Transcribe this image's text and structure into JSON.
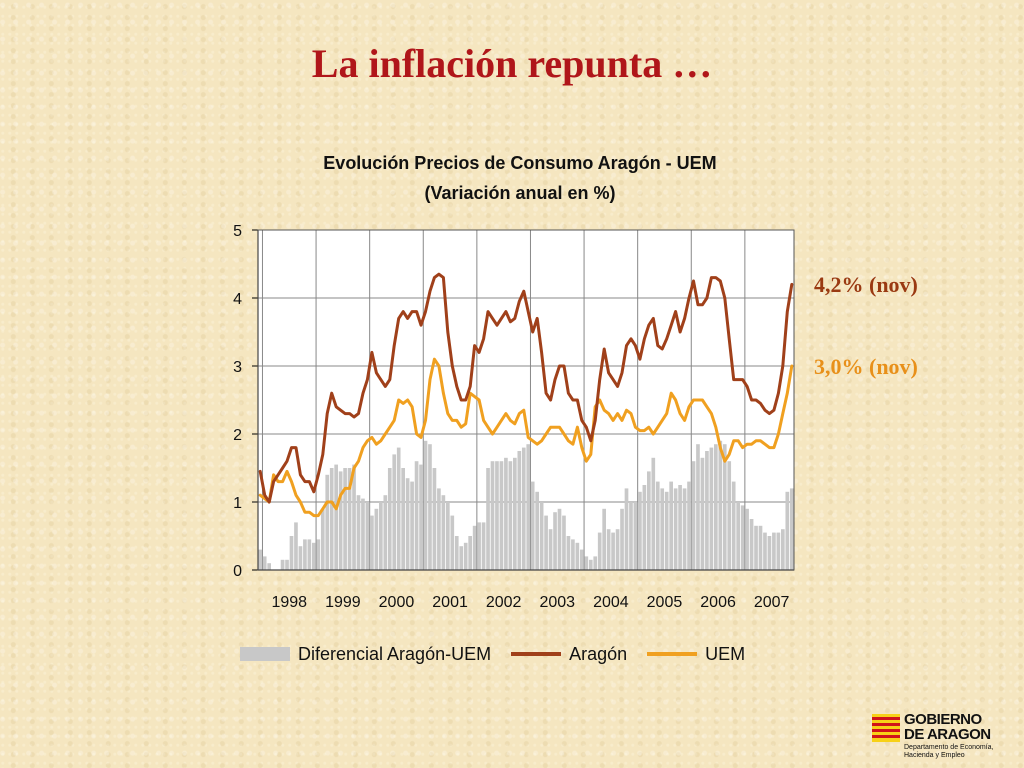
{
  "slide": {
    "title": "La inflación repunta …"
  },
  "annotations": {
    "aragon": "4,2% (nov)",
    "uem": "3,0% (nov)"
  },
  "logo": {
    "line1": "GOBIERNO",
    "line2": "DE ARAGON",
    "dept1": "Departamento de Economía,",
    "dept2": "Hacienda y Empleo"
  },
  "colors": {
    "aragon": "#a0401a",
    "uem": "#f0a020",
    "diferencial": "#c8c8c8",
    "title": "#b0161a"
  },
  "chart_data": {
    "type": "line",
    "title": "Evolución Precios de Consumo Aragón - UEM",
    "subtitle": "(Variación anual en %)",
    "xlabel": "",
    "ylabel": "",
    "ylim": [
      0,
      5
    ],
    "yticks": [
      0,
      1,
      2,
      3,
      4,
      5
    ],
    "xticks": [
      "1998",
      "1999",
      "2000",
      "2001",
      "2002",
      "2003",
      "2004",
      "2005",
      "2006",
      "2007"
    ],
    "grid": true,
    "legend_position": "bottom",
    "x_start": "1997-12",
    "x_end": "2007-11",
    "frequency": "monthly",
    "series": [
      {
        "name": "Diferencial Aragón-UEM",
        "kind": "bar",
        "values": [
          0.3,
          0.2,
          0.1,
          0.0,
          0.0,
          0.15,
          0.15,
          0.5,
          0.7,
          0.35,
          0.45,
          0.45,
          0.4,
          0.45,
          0.9,
          1.4,
          1.5,
          1.55,
          1.45,
          1.5,
          1.5,
          1.55,
          1.1,
          1.05,
          1.0,
          0.8,
          0.9,
          1.0,
          1.1,
          1.5,
          1.7,
          1.8,
          1.5,
          1.35,
          1.3,
          1.6,
          1.55,
          1.9,
          1.85,
          1.5,
          1.2,
          1.1,
          1.0,
          0.8,
          0.5,
          0.35,
          0.4,
          0.5,
          0.65,
          0.7,
          0.7,
          1.5,
          1.6,
          1.6,
          1.6,
          1.65,
          1.6,
          1.65,
          1.75,
          1.8,
          1.85,
          1.3,
          1.15,
          1.0,
          0.8,
          0.6,
          0.85,
          0.9,
          0.8,
          0.5,
          0.45,
          0.4,
          0.3,
          0.2,
          0.15,
          0.2,
          0.55,
          0.9,
          0.6,
          0.55,
          0.6,
          0.9,
          1.2,
          1.0,
          1.0,
          1.15,
          1.25,
          1.45,
          1.65,
          1.3,
          1.2,
          1.15,
          1.3,
          1.2,
          1.25,
          1.2,
          1.3,
          1.6,
          1.85,
          1.65,
          1.75,
          1.8,
          1.85,
          1.9,
          1.85,
          1.6,
          1.3,
          1.0,
          0.95,
          0.9,
          0.75,
          0.65,
          0.65,
          0.55,
          0.5,
          0.55,
          0.55,
          0.6,
          1.15,
          1.2
        ]
      },
      {
        "name": "Aragón",
        "kind": "line",
        "values": [
          1.45,
          1.1,
          1.0,
          1.3,
          1.4,
          1.5,
          1.6,
          1.8,
          1.8,
          1.4,
          1.3,
          1.3,
          1.15,
          1.4,
          1.7,
          2.3,
          2.6,
          2.4,
          2.35,
          2.3,
          2.3,
          2.25,
          2.3,
          2.6,
          2.8,
          3.2,
          2.9,
          2.8,
          2.7,
          2.8,
          3.3,
          3.7,
          3.8,
          3.7,
          3.8,
          3.8,
          3.6,
          3.8,
          4.1,
          4.3,
          4.35,
          4.3,
          3.5,
          3.0,
          2.7,
          2.5,
          2.5,
          2.7,
          3.3,
          3.2,
          3.4,
          3.8,
          3.7,
          3.6,
          3.7,
          3.8,
          3.65,
          3.7,
          3.95,
          4.1,
          3.8,
          3.5,
          3.7,
          3.2,
          2.6,
          2.5,
          2.8,
          3.0,
          3.0,
          2.6,
          2.5,
          2.5,
          2.2,
          2.1,
          1.9,
          2.2,
          2.8,
          3.25,
          2.9,
          2.8,
          2.7,
          2.9,
          3.3,
          3.4,
          3.3,
          3.1,
          3.4,
          3.6,
          3.7,
          3.3,
          3.25,
          3.4,
          3.6,
          3.8,
          3.5,
          3.7,
          4.0,
          4.25,
          3.9,
          3.9,
          4.0,
          4.3,
          4.3,
          4.25,
          4.0,
          3.4,
          2.8,
          2.8,
          2.8,
          2.7,
          2.5,
          2.5,
          2.45,
          2.35,
          2.3,
          2.35,
          2.6,
          3.0,
          3.8,
          4.2
        ]
      },
      {
        "name": "UEM",
        "kind": "line",
        "values": [
          1.1,
          1.05,
          1.0,
          1.4,
          1.3,
          1.3,
          1.45,
          1.3,
          1.1,
          1.0,
          0.85,
          0.85,
          0.8,
          0.8,
          0.9,
          1.0,
          1.0,
          0.9,
          1.1,
          1.2,
          1.2,
          1.5,
          1.6,
          1.8,
          1.9,
          1.95,
          1.85,
          1.9,
          2.0,
          2.1,
          2.2,
          2.5,
          2.45,
          2.5,
          2.4,
          2.0,
          1.95,
          2.2,
          2.8,
          3.1,
          3.0,
          2.6,
          2.3,
          2.2,
          2.2,
          2.1,
          2.15,
          2.6,
          2.55,
          2.5,
          2.2,
          2.1,
          2.0,
          2.1,
          2.2,
          2.3,
          2.2,
          2.15,
          2.3,
          2.35,
          1.95,
          1.9,
          1.85,
          1.9,
          2.0,
          2.1,
          2.1,
          2.1,
          2.0,
          1.9,
          1.85,
          2.1,
          1.8,
          1.6,
          1.7,
          2.4,
          2.5,
          2.35,
          2.3,
          2.2,
          2.3,
          2.2,
          2.35,
          2.3,
          2.1,
          2.05,
          2.05,
          2.1,
          2.0,
          2.1,
          2.2,
          2.3,
          2.6,
          2.5,
          2.3,
          2.2,
          2.4,
          2.5,
          2.5,
          2.5,
          2.4,
          2.3,
          2.1,
          1.8,
          1.6,
          1.7,
          1.9,
          1.9,
          1.8,
          1.85,
          1.85,
          1.9,
          1.9,
          1.85,
          1.8,
          1.8,
          2.0,
          2.3,
          2.6,
          3.0
        ]
      }
    ]
  }
}
